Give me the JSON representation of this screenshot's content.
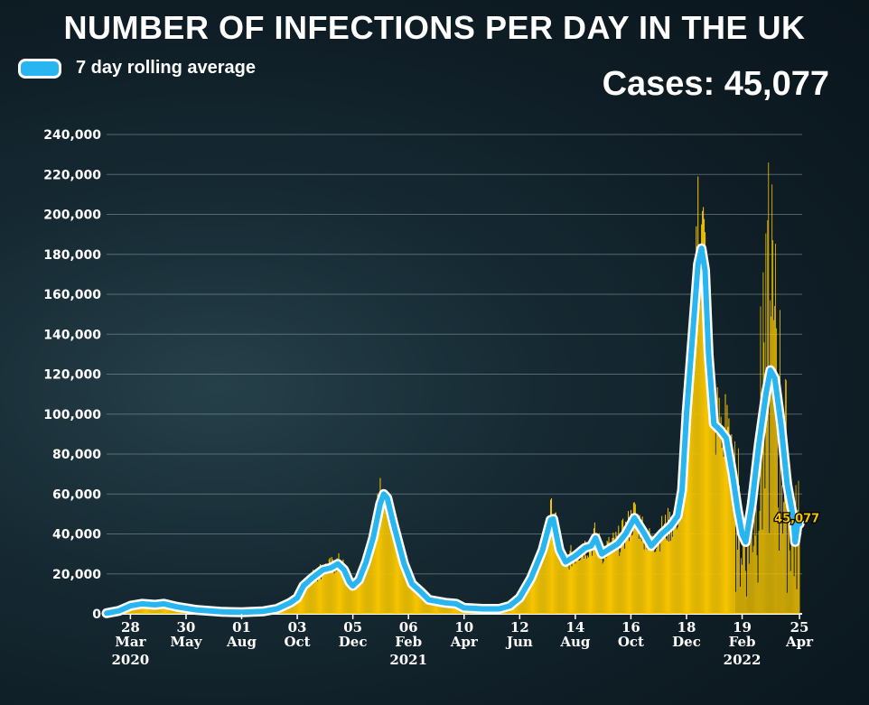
{
  "header": {
    "title": "NUMBER OF INFECTIONS PER DAY IN THE UK",
    "legend_label": "7 day rolling average",
    "cases_readout": "Cases: 45,077"
  },
  "colors": {
    "daily_cases": "#f5c400",
    "rolling_average": "#29b6f0",
    "rolling_average_outline": "#ffffff",
    "grid": "#8a9ba3"
  },
  "chart_data": {
    "type": "bar",
    "title": "NUMBER OF INFECTIONS PER DAY IN THE UK",
    "xlabel": "",
    "ylabel": "",
    "ylim": [
      0,
      240000
    ],
    "xlim": [
      "2020-03-01",
      "2022-04-28"
    ],
    "grid": true,
    "legend_position": "top-left",
    "y_ticks": [
      0,
      20000,
      40000,
      60000,
      80000,
      100000,
      120000,
      140000,
      160000,
      180000,
      200000,
      220000,
      240000
    ],
    "y_tick_labels": [
      "0",
      "20,000",
      "40,000",
      "60,000",
      "80,000",
      "100,000",
      "120,000",
      "140,000",
      "160,000",
      "180,000",
      "200,000",
      "220,000",
      "240,000"
    ],
    "x_ticks": [
      {
        "date": "2020-03-28",
        "day": "28",
        "month": "Mar",
        "year": "2020"
      },
      {
        "date": "2020-05-30",
        "day": "30",
        "month": "May",
        "year": ""
      },
      {
        "date": "2020-08-01",
        "day": "01",
        "month": "Aug",
        "year": ""
      },
      {
        "date": "2020-10-03",
        "day": "03",
        "month": "Oct",
        "year": ""
      },
      {
        "date": "2020-12-05",
        "day": "05",
        "month": "Dec",
        "year": ""
      },
      {
        "date": "2021-02-06",
        "day": "06",
        "month": "Feb",
        "year": "2021"
      },
      {
        "date": "2021-04-10",
        "day": "10",
        "month": "Apr",
        "year": ""
      },
      {
        "date": "2021-06-12",
        "day": "12",
        "month": "Jun",
        "year": ""
      },
      {
        "date": "2021-08-14",
        "day": "14",
        "month": "Aug",
        "year": ""
      },
      {
        "date": "2021-10-16",
        "day": "16",
        "month": "Oct",
        "year": ""
      },
      {
        "date": "2021-12-18",
        "day": "18",
        "month": "Dec",
        "year": ""
      },
      {
        "date": "2022-02-19",
        "day": "19",
        "month": "Feb",
        "year": "2022"
      },
      {
        "date": "2022-04-25",
        "day": "25",
        "month": "Apr",
        "year": ""
      }
    ],
    "series": [
      {
        "name": "7 day rolling average",
        "type": "line",
        "points": [
          [
            "2020-03-01",
            300
          ],
          [
            "2020-03-15",
            1500
          ],
          [
            "2020-03-28",
            4000
          ],
          [
            "2020-04-10",
            5000
          ],
          [
            "2020-04-25",
            4500
          ],
          [
            "2020-05-05",
            5000
          ],
          [
            "2020-05-20",
            3500
          ],
          [
            "2020-06-10",
            2000
          ],
          [
            "2020-07-10",
            1000
          ],
          [
            "2020-08-01",
            800
          ],
          [
            "2020-08-25",
            1200
          ],
          [
            "2020-09-10",
            2500
          ],
          [
            "2020-09-25",
            5500
          ],
          [
            "2020-10-03",
            8000
          ],
          [
            "2020-10-10",
            14000
          ],
          [
            "2020-10-20",
            18000
          ],
          [
            "2020-11-01",
            22000
          ],
          [
            "2020-11-10",
            23000
          ],
          [
            "2020-11-18",
            25000
          ],
          [
            "2020-11-25",
            22000
          ],
          [
            "2020-12-01",
            16000
          ],
          [
            "2020-12-05",
            14000
          ],
          [
            "2020-12-12",
            17000
          ],
          [
            "2020-12-20",
            26000
          ],
          [
            "2020-12-28",
            38000
          ],
          [
            "2021-01-05",
            55000
          ],
          [
            "2021-01-09",
            60000
          ],
          [
            "2021-01-13",
            58000
          ],
          [
            "2021-01-20",
            45000
          ],
          [
            "2021-02-01",
            25000
          ],
          [
            "2021-02-10",
            15000
          ],
          [
            "2021-02-20",
            11000
          ],
          [
            "2021-03-01",
            7000
          ],
          [
            "2021-03-20",
            5500
          ],
          [
            "2021-04-01",
            5000
          ],
          [
            "2021-04-10",
            3000
          ],
          [
            "2021-05-01",
            2500
          ],
          [
            "2021-05-20",
            2500
          ],
          [
            "2021-06-01",
            4000
          ],
          [
            "2021-06-12",
            8000
          ],
          [
            "2021-06-25",
            18000
          ],
          [
            "2021-07-08",
            32000
          ],
          [
            "2021-07-17",
            47000
          ],
          [
            "2021-07-20",
            47500
          ],
          [
            "2021-07-27",
            32000
          ],
          [
            "2021-08-03",
            26000
          ],
          [
            "2021-08-14",
            29000
          ],
          [
            "2021-08-25",
            33000
          ],
          [
            "2021-09-01",
            34000
          ],
          [
            "2021-09-06",
            38000
          ],
          [
            "2021-09-13",
            30000
          ],
          [
            "2021-09-20",
            32000
          ],
          [
            "2021-10-01",
            35000
          ],
          [
            "2021-10-10",
            40000
          ],
          [
            "2021-10-20",
            48000
          ],
          [
            "2021-10-30",
            41000
          ],
          [
            "2021-11-08",
            34000
          ],
          [
            "2021-11-20",
            40000
          ],
          [
            "2021-11-30",
            44000
          ],
          [
            "2021-12-08",
            49000
          ],
          [
            "2021-12-13",
            62000
          ],
          [
            "2021-12-18",
            100000
          ],
          [
            "2021-12-25",
            140000
          ],
          [
            "2021-12-31",
            175000
          ],
          [
            "2022-01-04",
            183000
          ],
          [
            "2022-01-08",
            172000
          ],
          [
            "2022-01-12",
            130000
          ],
          [
            "2022-01-18",
            95000
          ],
          [
            "2022-01-25",
            92000
          ],
          [
            "2022-02-01",
            88000
          ],
          [
            "2022-02-08",
            70000
          ],
          [
            "2022-02-14",
            52000
          ],
          [
            "2022-02-19",
            40000
          ],
          [
            "2022-02-23",
            36000
          ],
          [
            "2022-03-02",
            55000
          ],
          [
            "2022-03-10",
            85000
          ],
          [
            "2022-03-18",
            110000
          ],
          [
            "2022-03-23",
            122000
          ],
          [
            "2022-03-28",
            118000
          ],
          [
            "2022-04-04",
            95000
          ],
          [
            "2022-04-11",
            65000
          ],
          [
            "2022-04-18",
            48000
          ],
          [
            "2022-04-20",
            36000
          ],
          [
            "2022-04-23",
            45077
          ],
          [
            "2022-04-25",
            45077
          ]
        ]
      },
      {
        "name": "",
        "type": "bar",
        "description_points": [
          [
            "2021-01-05",
            68000
          ],
          [
            "2021-12-31",
            219000
          ],
          [
            "2022-01-04",
            195000
          ],
          [
            "2022-01-31",
            110000
          ],
          [
            "2022-03-15",
            171000
          ],
          [
            "2022-03-21",
            226000
          ],
          [
            "2022-03-25",
            215000
          ],
          [
            "2022-03-30",
            143000
          ],
          [
            "2022-04-10",
            117000
          ]
        ]
      }
    ],
    "annotations": [
      {
        "date": "2022-04-25",
        "value": 45077,
        "label": "45,077"
      }
    ]
  }
}
